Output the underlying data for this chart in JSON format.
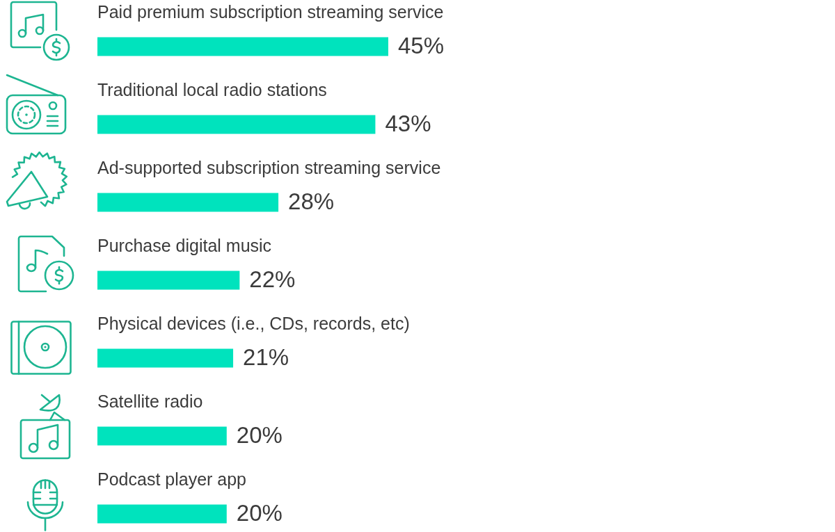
{
  "chart_data": {
    "type": "bar",
    "orientation": "horizontal",
    "categories": [
      "Paid premium subscription streaming service",
      "Traditional local radio stations",
      "Ad-supported subscription streaming service",
      "Purchase digital music",
      "Physical devices (i.e., CDs, records, etc)",
      "Satellite radio",
      "Podcast player app"
    ],
    "values": [
      45,
      43,
      28,
      22,
      21,
      20,
      20
    ],
    "color": "#00e3bd",
    "value_labels": [
      "45%",
      "43%",
      "28%",
      "22%",
      "21%",
      "20%",
      "20%"
    ]
  }
}
